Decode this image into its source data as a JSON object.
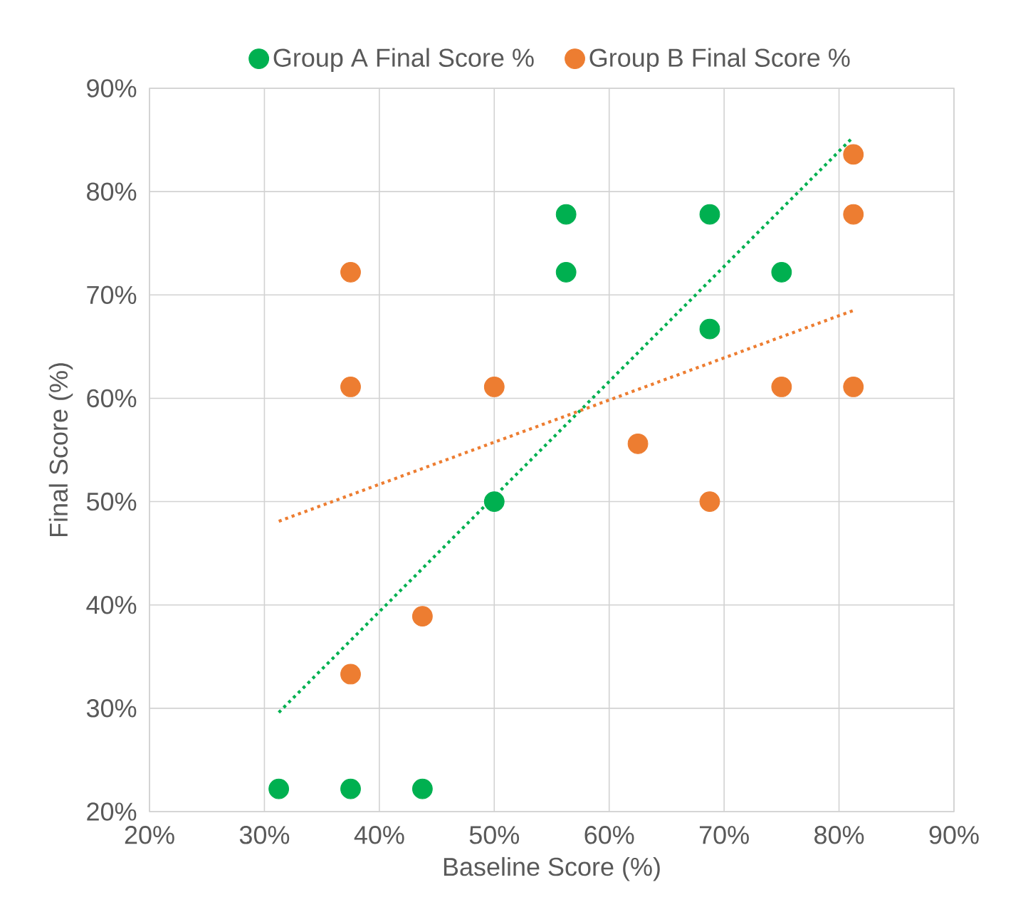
{
  "chart_data": {
    "type": "scatter",
    "xlabel": "Baseline Score (%)",
    "ylabel": "Final Score (%)",
    "xlim": [
      20,
      90
    ],
    "ylim": [
      20,
      90
    ],
    "xticks": [
      {
        "value": 20,
        "label": "20%"
      },
      {
        "value": 30,
        "label": "30%"
      },
      {
        "value": 40,
        "label": "40%"
      },
      {
        "value": 50,
        "label": "50%"
      },
      {
        "value": 60,
        "label": "60%"
      },
      {
        "value": 70,
        "label": "70%"
      },
      {
        "value": 80,
        "label": "80%"
      },
      {
        "value": 90,
        "label": "90%"
      }
    ],
    "yticks": [
      {
        "value": 20,
        "label": "20%"
      },
      {
        "value": 30,
        "label": "30%"
      },
      {
        "value": 40,
        "label": "40%"
      },
      {
        "value": 50,
        "label": "50%"
      },
      {
        "value": 60,
        "label": "60%"
      },
      {
        "value": 70,
        "label": "70%"
      },
      {
        "value": 80,
        "label": "80%"
      },
      {
        "value": 90,
        "label": "90%"
      }
    ],
    "grid": true,
    "legend": "top",
    "series": [
      {
        "name": "Group A Final Score %",
        "marker": "circle",
        "color": "#00b050",
        "x": [
          31.25,
          37.5,
          43.75,
          50,
          56.25,
          56.25,
          68.75,
          68.75,
          75
        ],
        "values": [
          22.2,
          22.2,
          22.2,
          50,
          77.8,
          72.2,
          77.8,
          66.7,
          72.2
        ]
      },
      {
        "name": "Group B Final Score %",
        "marker": "circle",
        "color": "#ed7d31",
        "x": [
          37.5,
          37.5,
          37.5,
          43.75,
          50,
          62.5,
          68.75,
          75,
          81.25,
          81.25,
          81.25
        ],
        "values": [
          72.2,
          61.1,
          33.3,
          38.9,
          61.1,
          55.6,
          50,
          61.1,
          83.6,
          77.8,
          61.1
        ]
      },
      {
        "type": "line",
        "line_style": "dotted",
        "marker": "none",
        "color": "#00b050",
        "x": [
          31.25,
          81.25
        ],
        "values": [
          29.6,
          85.3
        ]
      },
      {
        "type": "line",
        "line_style": "dotted",
        "marker": "none",
        "color": "#ed7d31",
        "x": [
          31.25,
          81.25
        ],
        "values": [
          48.1,
          68.5
        ]
      }
    ]
  }
}
